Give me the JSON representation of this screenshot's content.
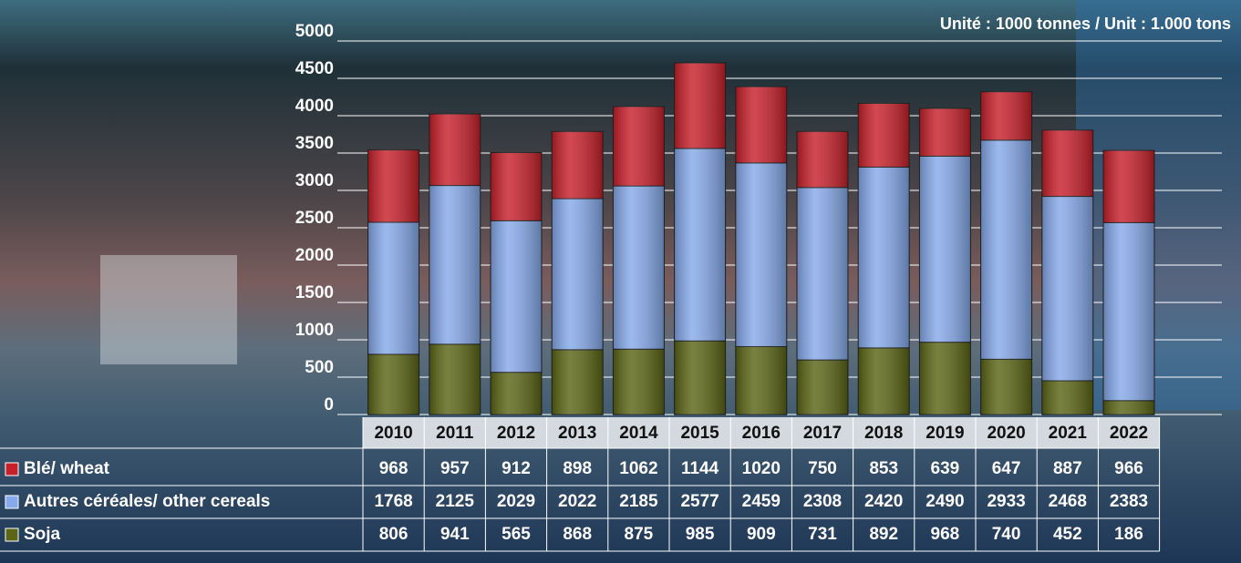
{
  "chart_data": {
    "type": "bar",
    "stacked": true,
    "note": "Unité : 1000 tonnes / Unit : 1.000 tons",
    "categories": [
      "2010",
      "2011",
      "2012",
      "2013",
      "2014",
      "2015",
      "2016",
      "2017",
      "2018",
      "2019",
      "2020",
      "2021",
      "2022"
    ],
    "series": [
      {
        "name": "Blé/ wheat",
        "color": "#c8202a",
        "values": [
          968,
          957,
          912,
          898,
          1062,
          1144,
          1020,
          750,
          853,
          639,
          647,
          887,
          966
        ]
      },
      {
        "name": "Autres céréales/ other cereals",
        "color": "#86aaea",
        "values": [
          1768,
          2125,
          2029,
          2022,
          2185,
          2577,
          2459,
          2308,
          2420,
          2490,
          2933,
          2468,
          2383
        ]
      },
      {
        "name": "Soja",
        "color": "#5b6516",
        "values": [
          806,
          941,
          565,
          868,
          875,
          985,
          909,
          731,
          892,
          968,
          740,
          452,
          186
        ]
      }
    ],
    "ylim": [
      0,
      5000
    ],
    "yticks": [
      0,
      500,
      1000,
      1500,
      2000,
      2500,
      3000,
      3500,
      4000,
      4500,
      5000
    ],
    "grid": true
  }
}
